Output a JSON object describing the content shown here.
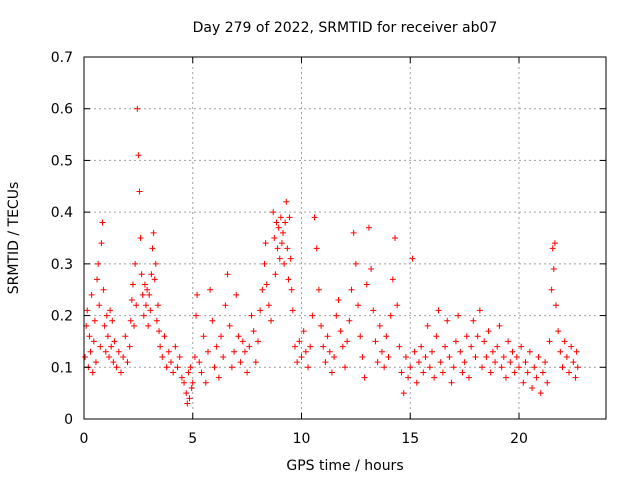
{
  "chart_data": {
    "type": "scatter",
    "title": "Day 279 of 2022, SRMTID for receiver ab07",
    "xlabel": "GPS time / hours",
    "ylabel": "SRMTID / TECUs",
    "xlim": [
      0,
      24
    ],
    "ylim": [
      0,
      0.7
    ],
    "xticks": [
      0,
      5,
      10,
      15,
      20
    ],
    "xtick_labels": [
      "0",
      "5",
      "10",
      "15",
      "20"
    ],
    "yticks": [
      0,
      0.1,
      0.2,
      0.3,
      0.4,
      0.5,
      0.6,
      0.7
    ],
    "ytick_labels": [
      "0",
      "0.1",
      "0.2",
      "0.3",
      "0.4",
      "0.5",
      "0.6",
      "0.7"
    ],
    "grid": true,
    "marker": "+",
    "color": "#ff0000",
    "series": [
      {
        "name": "SRMTID",
        "points": [
          [
            0.05,
            0.12
          ],
          [
            0.1,
            0.18
          ],
          [
            0.15,
            0.21
          ],
          [
            0.2,
            0.1
          ],
          [
            0.25,
            0.16
          ],
          [
            0.3,
            0.13
          ],
          [
            0.35,
            0.24
          ],
          [
            0.4,
            0.09
          ],
          [
            0.45,
            0.15
          ],
          [
            0.5,
            0.19
          ],
          [
            0.55,
            0.11
          ],
          [
            0.6,
            0.27
          ],
          [
            0.65,
            0.3
          ],
          [
            0.7,
            0.22
          ],
          [
            0.75,
            0.14
          ],
          [
            0.8,
            0.34
          ],
          [
            0.85,
            0.38
          ],
          [
            0.9,
            0.25
          ],
          [
            0.95,
            0.18
          ],
          [
            1.0,
            0.13
          ],
          [
            1.05,
            0.2
          ],
          [
            1.1,
            0.16
          ],
          [
            1.15,
            0.12
          ],
          [
            1.2,
            0.21
          ],
          [
            1.25,
            0.14
          ],
          [
            1.3,
            0.19
          ],
          [
            1.35,
            0.11
          ],
          [
            1.4,
            0.15
          ],
          [
            1.5,
            0.1
          ],
          [
            1.6,
            0.13
          ],
          [
            1.7,
            0.09
          ],
          [
            1.8,
            0.12
          ],
          [
            1.9,
            0.16
          ],
          [
            2.0,
            0.11
          ],
          [
            2.1,
            0.14
          ],
          [
            2.15,
            0.19
          ],
          [
            2.2,
            0.23
          ],
          [
            2.25,
            0.26
          ],
          [
            2.3,
            0.18
          ],
          [
            2.35,
            0.3
          ],
          [
            2.4,
            0.22
          ],
          [
            2.45,
            0.6
          ],
          [
            2.5,
            0.51
          ],
          [
            2.55,
            0.44
          ],
          [
            2.6,
            0.35
          ],
          [
            2.65,
            0.28
          ],
          [
            2.7,
            0.24
          ],
          [
            2.75,
            0.2
          ],
          [
            2.8,
            0.26
          ],
          [
            2.85,
            0.22
          ],
          [
            2.9,
            0.25
          ],
          [
            2.95,
            0.18
          ],
          [
            3.0,
            0.24
          ],
          [
            3.05,
            0.21
          ],
          [
            3.1,
            0.28
          ],
          [
            3.15,
            0.33
          ],
          [
            3.2,
            0.36
          ],
          [
            3.25,
            0.27
          ],
          [
            3.3,
            0.3
          ],
          [
            3.35,
            0.19
          ],
          [
            3.4,
            0.22
          ],
          [
            3.45,
            0.17
          ],
          [
            3.5,
            0.14
          ],
          [
            3.6,
            0.12
          ],
          [
            3.7,
            0.16
          ],
          [
            3.8,
            0.1
          ],
          [
            3.9,
            0.13
          ],
          [
            4.0,
            0.11
          ],
          [
            4.1,
            0.09
          ],
          [
            4.2,
            0.14
          ],
          [
            4.3,
            0.1
          ],
          [
            4.4,
            0.12
          ],
          [
            4.5,
            0.08
          ],
          [
            4.6,
            0.07
          ],
          [
            4.7,
            0.05
          ],
          [
            4.75,
            0.03
          ],
          [
            4.8,
            0.09
          ],
          [
            4.85,
            0.04
          ],
          [
            4.9,
            0.1
          ],
          [
            4.95,
            0.06
          ],
          [
            5.0,
            0.07
          ],
          [
            5.1,
            0.12
          ],
          [
            5.15,
            0.2
          ],
          [
            5.2,
            0.24
          ],
          [
            5.3,
            0.11
          ],
          [
            5.4,
            0.09
          ],
          [
            5.5,
            0.16
          ],
          [
            5.6,
            0.07
          ],
          [
            5.7,
            0.13
          ],
          [
            5.8,
            0.25
          ],
          [
            5.9,
            0.19
          ],
          [
            6.0,
            0.1
          ],
          [
            6.1,
            0.14
          ],
          [
            6.2,
            0.08
          ],
          [
            6.3,
            0.16
          ],
          [
            6.4,
            0.12
          ],
          [
            6.5,
            0.22
          ],
          [
            6.6,
            0.28
          ],
          [
            6.7,
            0.18
          ],
          [
            6.8,
            0.1
          ],
          [
            6.9,
            0.13
          ],
          [
            7.0,
            0.24
          ],
          [
            7.1,
            0.16
          ],
          [
            7.2,
            0.11
          ],
          [
            7.3,
            0.15
          ],
          [
            7.4,
            0.13
          ],
          [
            7.5,
            0.09
          ],
          [
            7.6,
            0.14
          ],
          [
            7.7,
            0.2
          ],
          [
            7.8,
            0.17
          ],
          [
            7.9,
            0.11
          ],
          [
            8.0,
            0.15
          ],
          [
            8.1,
            0.21
          ],
          [
            8.2,
            0.25
          ],
          [
            8.3,
            0.3
          ],
          [
            8.35,
            0.34
          ],
          [
            8.4,
            0.26
          ],
          [
            8.5,
            0.22
          ],
          [
            8.6,
            0.19
          ],
          [
            8.7,
            0.4
          ],
          [
            8.75,
            0.35
          ],
          [
            8.8,
            0.28
          ],
          [
            8.85,
            0.38
          ],
          [
            8.9,
            0.33
          ],
          [
            8.95,
            0.37
          ],
          [
            9.0,
            0.31
          ],
          [
            9.05,
            0.39
          ],
          [
            9.1,
            0.34
          ],
          [
            9.15,
            0.36
          ],
          [
            9.2,
            0.3
          ],
          [
            9.25,
            0.38
          ],
          [
            9.3,
            0.42
          ],
          [
            9.35,
            0.33
          ],
          [
            9.4,
            0.27
          ],
          [
            9.45,
            0.39
          ],
          [
            9.5,
            0.31
          ],
          [
            9.55,
            0.25
          ],
          [
            9.6,
            0.21
          ],
          [
            9.7,
            0.14
          ],
          [
            9.8,
            0.11
          ],
          [
            9.9,
            0.15
          ],
          [
            10.0,
            0.12
          ],
          [
            10.1,
            0.17
          ],
          [
            10.2,
            0.13
          ],
          [
            10.3,
            0.1
          ],
          [
            10.4,
            0.14
          ],
          [
            10.5,
            0.2
          ],
          [
            10.6,
            0.39
          ],
          [
            10.7,
            0.33
          ],
          [
            10.8,
            0.25
          ],
          [
            10.9,
            0.18
          ],
          [
            11.0,
            0.14
          ],
          [
            11.1,
            0.11
          ],
          [
            11.2,
            0.16
          ],
          [
            11.3,
            0.13
          ],
          [
            11.4,
            0.09
          ],
          [
            11.5,
            0.12
          ],
          [
            11.6,
            0.2
          ],
          [
            11.7,
            0.23
          ],
          [
            11.8,
            0.17
          ],
          [
            11.9,
            0.14
          ],
          [
            12.0,
            0.1
          ],
          [
            12.1,
            0.15
          ],
          [
            12.2,
            0.19
          ],
          [
            12.3,
            0.25
          ],
          [
            12.4,
            0.36
          ],
          [
            12.5,
            0.3
          ],
          [
            12.6,
            0.22
          ],
          [
            12.7,
            0.16
          ],
          [
            12.8,
            0.12
          ],
          [
            12.9,
            0.08
          ],
          [
            13.0,
            0.26
          ],
          [
            13.1,
            0.37
          ],
          [
            13.2,
            0.29
          ],
          [
            13.3,
            0.21
          ],
          [
            13.4,
            0.15
          ],
          [
            13.5,
            0.11
          ],
          [
            13.6,
            0.18
          ],
          [
            13.7,
            0.13
          ],
          [
            13.8,
            0.1
          ],
          [
            13.9,
            0.16
          ],
          [
            14.0,
            0.12
          ],
          [
            14.1,
            0.2
          ],
          [
            14.2,
            0.27
          ],
          [
            14.3,
            0.35
          ],
          [
            14.4,
            0.22
          ],
          [
            14.5,
            0.14
          ],
          [
            14.6,
            0.09
          ],
          [
            14.7,
            0.05
          ],
          [
            14.8,
            0.12
          ],
          [
            14.9,
            0.08
          ],
          [
            15.0,
            0.1
          ],
          [
            15.1,
            0.31
          ],
          [
            15.2,
            0.13
          ],
          [
            15.3,
            0.07
          ],
          [
            15.4,
            0.11
          ],
          [
            15.5,
            0.14
          ],
          [
            15.6,
            0.09
          ],
          [
            15.7,
            0.12
          ],
          [
            15.8,
            0.18
          ],
          [
            15.9,
            0.1
          ],
          [
            16.0,
            0.13
          ],
          [
            16.1,
            0.08
          ],
          [
            16.2,
            0.16
          ],
          [
            16.3,
            0.21
          ],
          [
            16.4,
            0.11
          ],
          [
            16.5,
            0.09
          ],
          [
            16.6,
            0.14
          ],
          [
            16.7,
            0.19
          ],
          [
            16.8,
            0.12
          ],
          [
            16.9,
            0.07
          ],
          [
            17.0,
            0.1
          ],
          [
            17.1,
            0.15
          ],
          [
            17.2,
            0.2
          ],
          [
            17.3,
            0.13
          ],
          [
            17.4,
            0.09
          ],
          [
            17.5,
            0.11
          ],
          [
            17.6,
            0.16
          ],
          [
            17.7,
            0.08
          ],
          [
            17.8,
            0.14
          ],
          [
            17.9,
            0.19
          ],
          [
            18.0,
            0.12
          ],
          [
            18.1,
            0.16
          ],
          [
            18.2,
            0.21
          ],
          [
            18.3,
            0.1
          ],
          [
            18.4,
            0.15
          ],
          [
            18.5,
            0.12
          ],
          [
            18.6,
            0.17
          ],
          [
            18.7,
            0.09
          ],
          [
            18.8,
            0.13
          ],
          [
            18.9,
            0.11
          ],
          [
            19.0,
            0.14
          ],
          [
            19.1,
            0.18
          ],
          [
            19.2,
            0.1
          ],
          [
            19.3,
            0.12
          ],
          [
            19.4,
            0.08
          ],
          [
            19.5,
            0.15
          ],
          [
            19.6,
            0.11
          ],
          [
            19.7,
            0.13
          ],
          [
            19.8,
            0.09
          ],
          [
            19.9,
            0.12
          ],
          [
            20.0,
            0.1
          ],
          [
            20.1,
            0.14
          ],
          [
            20.2,
            0.07
          ],
          [
            20.3,
            0.11
          ],
          [
            20.4,
            0.09
          ],
          [
            20.5,
            0.13
          ],
          [
            20.6,
            0.06
          ],
          [
            20.7,
            0.1
          ],
          [
            20.8,
            0.08
          ],
          [
            20.9,
            0.12
          ],
          [
            21.0,
            0.05
          ],
          [
            21.1,
            0.09
          ],
          [
            21.2,
            0.11
          ],
          [
            21.3,
            0.07
          ],
          [
            21.4,
            0.15
          ],
          [
            21.5,
            0.25
          ],
          [
            21.55,
            0.33
          ],
          [
            21.6,
            0.29
          ],
          [
            21.65,
            0.34
          ],
          [
            21.7,
            0.22
          ],
          [
            21.8,
            0.17
          ],
          [
            21.9,
            0.13
          ],
          [
            22.0,
            0.1
          ],
          [
            22.1,
            0.15
          ],
          [
            22.2,
            0.12
          ],
          [
            22.3,
            0.09
          ],
          [
            22.4,
            0.14
          ],
          [
            22.5,
            0.11
          ],
          [
            22.6,
            0.08
          ],
          [
            22.65,
            0.13
          ],
          [
            22.7,
            0.1
          ]
        ]
      }
    ]
  }
}
